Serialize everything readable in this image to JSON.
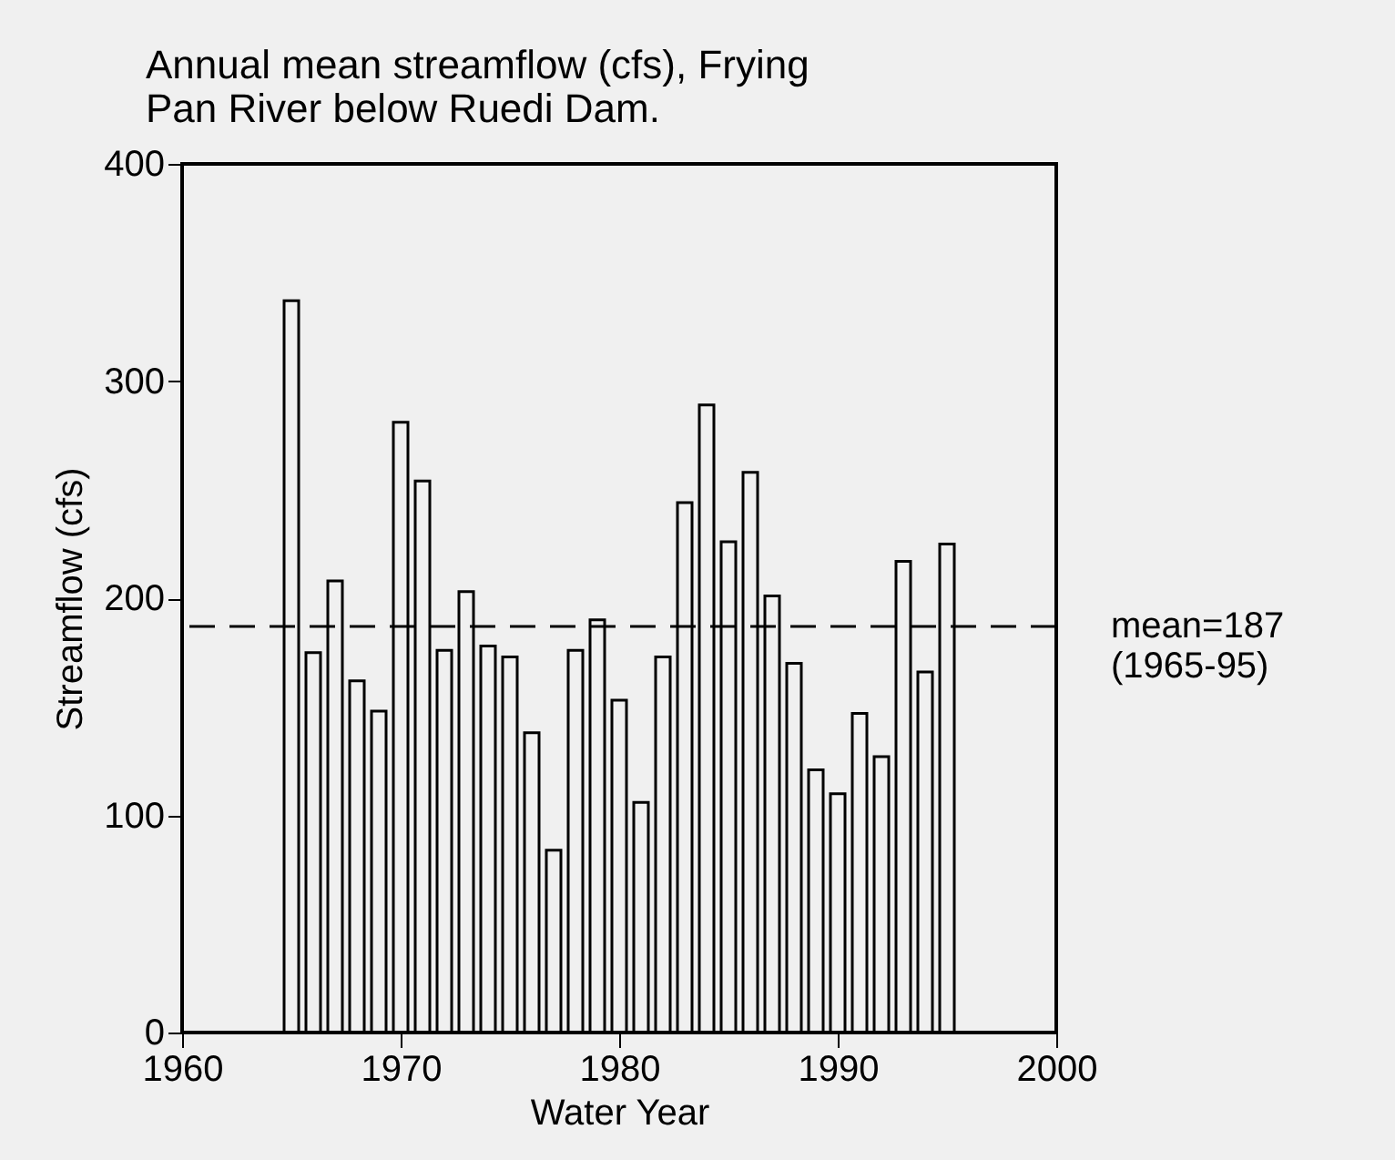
{
  "chart_data": {
    "type": "bar",
    "title": "Annual mean streamflow (cfs), Frying Pan River below Ruedi Dam.",
    "xlabel": "Water Year",
    "ylabel": "Streamflow (cfs)",
    "x": [
      1965,
      1966,
      1967,
      1968,
      1969,
      1970,
      1971,
      1972,
      1973,
      1974,
      1975,
      1976,
      1977,
      1978,
      1979,
      1980,
      1981,
      1982,
      1983,
      1984,
      1985,
      1986,
      1987,
      1988,
      1989,
      1990,
      1991,
      1992,
      1993,
      1994,
      1995
    ],
    "values": [
      337,
      175,
      208,
      162,
      148,
      281,
      254,
      176,
      203,
      178,
      173,
      138,
      84,
      176,
      190,
      153,
      106,
      173,
      244,
      289,
      226,
      258,
      201,
      170,
      121,
      110,
      147,
      127,
      217,
      166,
      225
    ],
    "color": "#000000",
    "xlim": [
      1960,
      2000
    ],
    "xticks": [
      1960,
      1970,
      1980,
      1990,
      2000
    ],
    "ylim": [
      0,
      400
    ],
    "yticks": [
      0,
      100,
      200,
      300,
      400
    ],
    "ref_lines": [
      {
        "axis": "y",
        "value": 187,
        "label": "mean=187\n(1965-95)",
        "line_style": "dashed",
        "color": "#000000"
      }
    ],
    "grid": false
  }
}
